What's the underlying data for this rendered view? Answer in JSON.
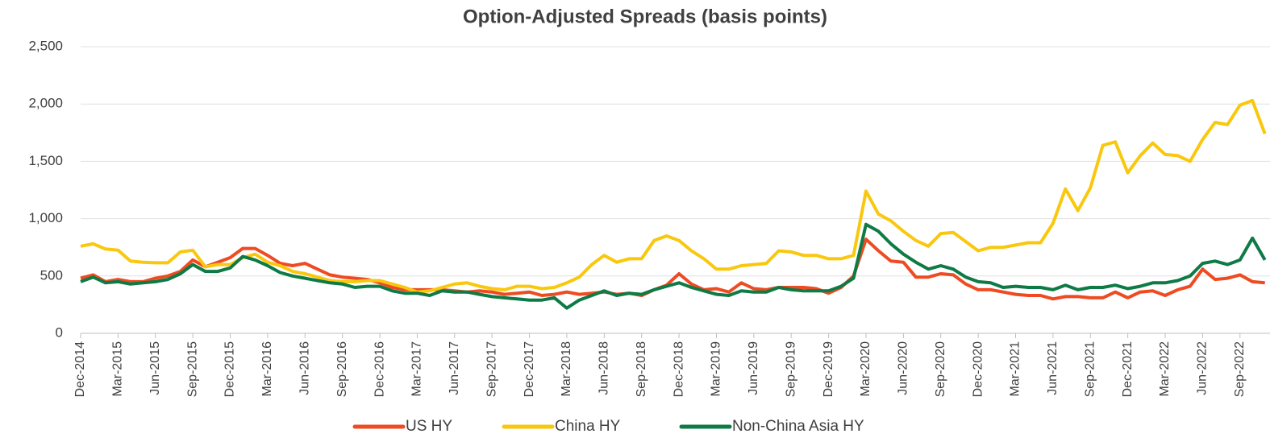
{
  "chart_data": {
    "type": "line",
    "title": "Option-Adjusted Spreads (basis points)",
    "categories": [
      "Dec-2014",
      null,
      null,
      "Mar-2015",
      null,
      null,
      "Jun-2015",
      null,
      null,
      "Sep-2015",
      null,
      null,
      "Dec-2015",
      null,
      null,
      "Mar-2016",
      null,
      null,
      "Jun-2016",
      null,
      null,
      "Sep-2016",
      null,
      null,
      "Dec-2016",
      null,
      null,
      "Mar-2017",
      null,
      null,
      "Jun-2017",
      null,
      null,
      "Sep-2017",
      null,
      null,
      "Dec-2017",
      null,
      null,
      "Mar-2018",
      null,
      null,
      "Jun-2018",
      null,
      null,
      "Sep-2018",
      null,
      null,
      "Dec-2018",
      null,
      null,
      "Mar-2019",
      null,
      null,
      "Jun-2019",
      null,
      null,
      "Sep-2019",
      null,
      null,
      "Dec-2019",
      null,
      null,
      "Mar-2020",
      null,
      null,
      "Jun-2020",
      null,
      null,
      "Sep-2020",
      null,
      null,
      "Dec-2020",
      null,
      null,
      "Mar-2021",
      null,
      null,
      "Jun-2021",
      null,
      null,
      "Sep-2021",
      null,
      null,
      "Dec-2021",
      null,
      null,
      "Mar-2022",
      null,
      null,
      "Jun-2022",
      null,
      null,
      "Sep-2022",
      null,
      null
    ],
    "series": [
      {
        "name": "US HY",
        "color": "#ee4b22",
        "values": [
          480,
          510,
          450,
          470,
          450,
          450,
          480,
          500,
          540,
          640,
          580,
          620,
          660,
          740,
          740,
          680,
          610,
          590,
          610,
          560,
          510,
          490,
          480,
          470,
          440,
          400,
          380,
          380,
          380,
          380,
          370,
          360,
          370,
          360,
          340,
          350,
          360,
          330,
          340,
          360,
          340,
          350,
          360,
          340,
          350,
          330,
          380,
          420,
          520,
          430,
          380,
          390,
          360,
          440,
          390,
          380,
          400,
          400,
          400,
          390,
          350,
          400,
          500,
          820,
          720,
          630,
          620,
          490,
          490,
          520,
          510,
          430,
          380,
          380,
          360,
          340,
          330,
          330,
          300,
          320,
          320,
          310,
          310,
          360,
          310,
          360,
          370,
          330,
          380,
          410,
          560,
          470,
          480,
          510,
          450,
          440
        ]
      },
      {
        "name": "China HY",
        "color": "#f9c80e",
        "values": [
          760,
          780,
          735,
          725,
          630,
          620,
          615,
          615,
          710,
          725,
          580,
          600,
          600,
          660,
          690,
          620,
          590,
          540,
          520,
          490,
          460,
          450,
          450,
          460,
          460,
          430,
          400,
          360,
          370,
          400,
          430,
          440,
          410,
          390,
          380,
          410,
          410,
          390,
          400,
          440,
          490,
          600,
          680,
          620,
          650,
          650,
          810,
          850,
          810,
          720,
          650,
          560,
          560,
          590,
          600,
          610,
          720,
          710,
          680,
          680,
          650,
          650,
          680,
          1240,
          1040,
          980,
          890,
          810,
          760,
          870,
          880,
          800,
          720,
          750,
          750,
          770,
          790,
          790,
          960,
          1260,
          1070,
          1270,
          1640,
          1670,
          1400,
          1550,
          1660,
          1560,
          1550,
          1500,
          1690,
          1840,
          1820,
          1990,
          2030,
          1740
        ]
      },
      {
        "name": "Non-China Asia HY",
        "color": "#0e7a45",
        "values": [
          450,
          490,
          440,
          450,
          430,
          440,
          450,
          470,
          520,
          600,
          540,
          540,
          570,
          670,
          640,
          590,
          530,
          500,
          480,
          460,
          440,
          430,
          400,
          410,
          410,
          370,
          350,
          350,
          330,
          370,
          360,
          360,
          340,
          320,
          310,
          300,
          290,
          290,
          310,
          220,
          290,
          330,
          370,
          330,
          350,
          340,
          380,
          410,
          440,
          400,
          370,
          340,
          330,
          370,
          360,
          360,
          400,
          380,
          370,
          370,
          370,
          410,
          480,
          950,
          890,
          780,
          690,
          620,
          560,
          590,
          560,
          490,
          450,
          440,
          400,
          410,
          400,
          400,
          380,
          420,
          380,
          400,
          400,
          420,
          390,
          410,
          440,
          440,
          460,
          500,
          610,
          630,
          600,
          640,
          830,
          640
        ]
      }
    ],
    "ylim": [
      0,
      2500
    ],
    "yticks": [
      0,
      500,
      {
        "value": 1000,
        "label": "1,000"
      },
      {
        "value": 1500,
        "label": "1,500"
      },
      {
        "value": 2000,
        "label": "2,000"
      },
      {
        "value": 2500,
        "label": "2,500"
      }
    ],
    "grid": true,
    "legend": "bottom"
  }
}
